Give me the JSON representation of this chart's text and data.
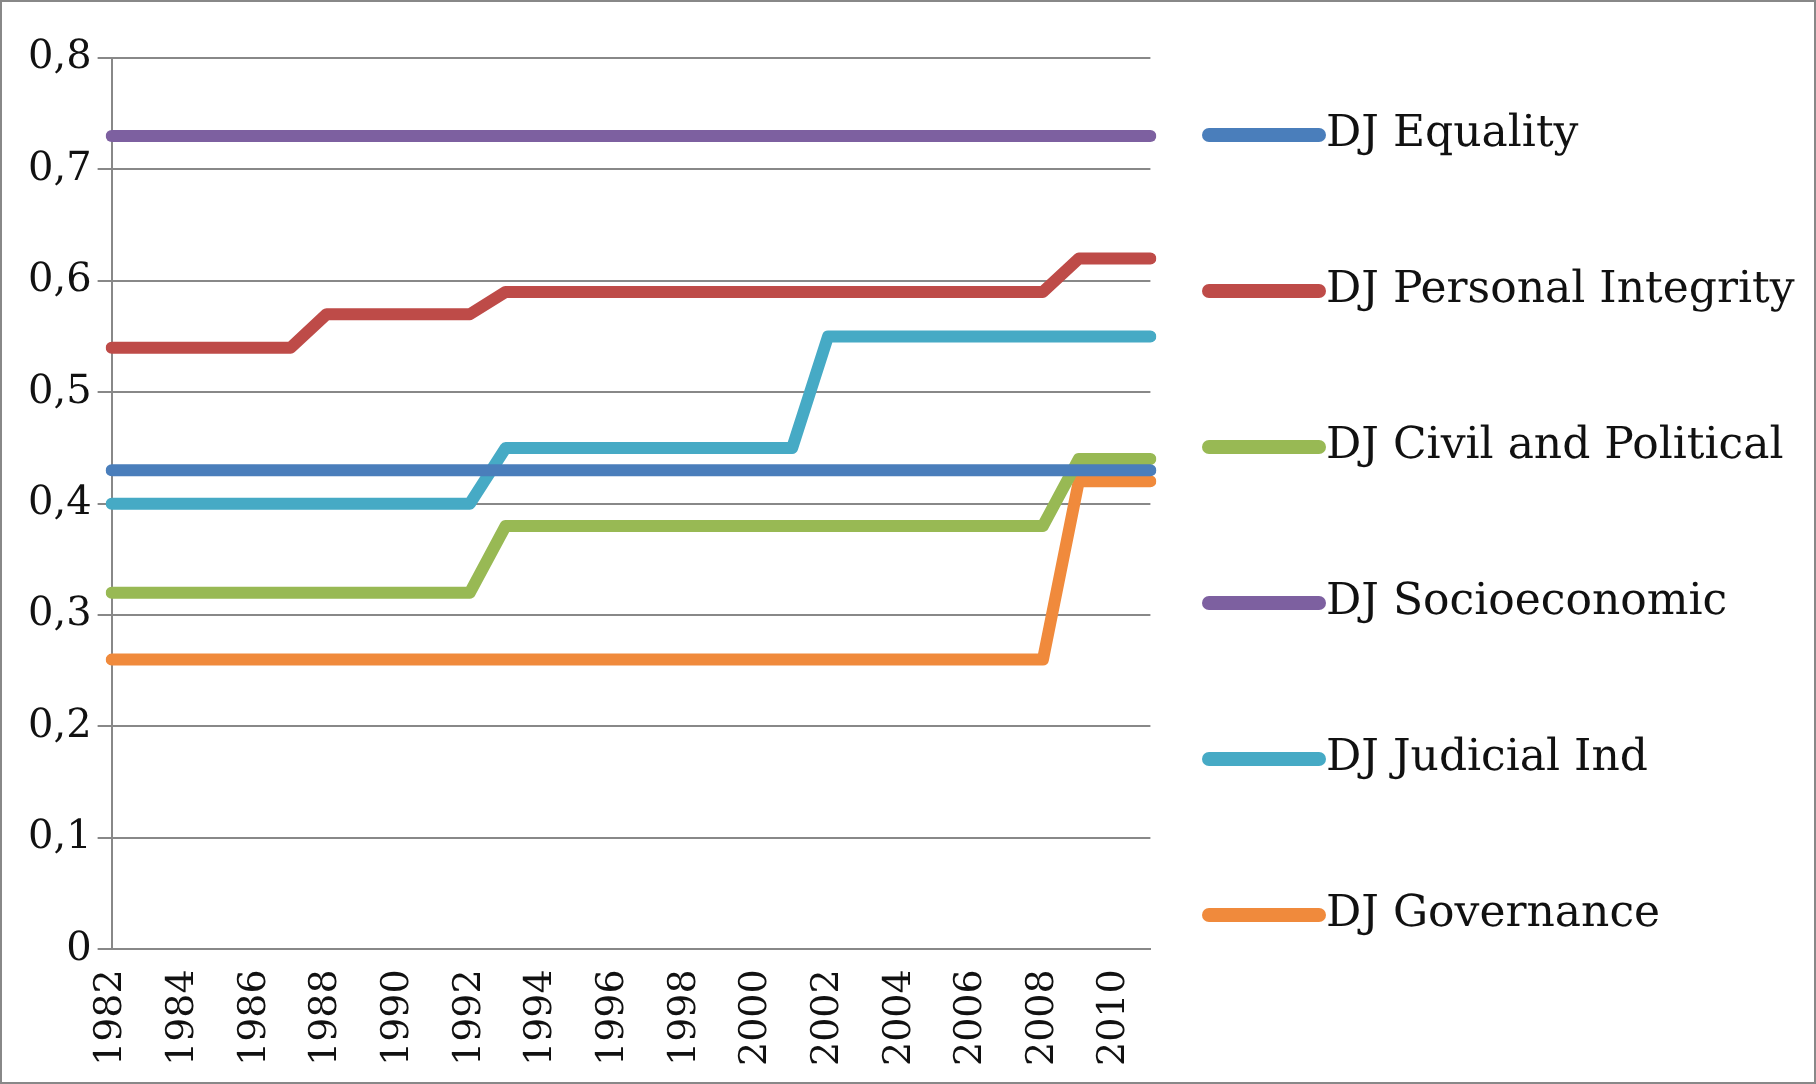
{
  "chart_data": {
    "type": "line",
    "categories": [
      "1982",
      null,
      "1984",
      null,
      "1986",
      null,
      "1988",
      null,
      "1990",
      null,
      "1992",
      null,
      "1994",
      null,
      "1996",
      null,
      "1998",
      null,
      "2000",
      null,
      "2002",
      null,
      "2004",
      null,
      "2006",
      null,
      "2008",
      null,
      "2010",
      null
    ],
    "series": [
      {
        "name": "DJ Equality",
        "color": "#4a7ebb",
        "values": [
          0.43,
          0.43,
          0.43,
          0.43,
          0.43,
          0.43,
          0.43,
          0.43,
          0.43,
          0.43,
          0.43,
          0.43,
          0.43,
          0.43,
          0.43,
          0.43,
          0.43,
          0.43,
          0.43,
          0.43,
          0.43,
          0.43,
          0.43,
          0.43,
          0.43,
          0.43,
          0.43,
          0.43,
          0.43,
          0.43
        ]
      },
      {
        "name": "DJ Personal Integrity",
        "color": "#be4b48",
        "values": [
          0.54,
          0.54,
          0.54,
          0.54,
          0.54,
          0.54,
          0.57,
          0.57,
          0.57,
          0.57,
          0.57,
          0.59,
          0.59,
          0.59,
          0.59,
          0.59,
          0.59,
          0.59,
          0.59,
          0.59,
          0.59,
          0.59,
          0.59,
          0.59,
          0.59,
          0.59,
          0.59,
          0.62,
          0.62,
          0.62
        ]
      },
      {
        "name": "DJ Civil and Political",
        "color": "#98b954",
        "values": [
          0.32,
          0.32,
          0.32,
          0.32,
          0.32,
          0.32,
          0.32,
          0.32,
          0.32,
          0.32,
          0.32,
          0.38,
          0.38,
          0.38,
          0.38,
          0.38,
          0.38,
          0.38,
          0.38,
          0.38,
          0.38,
          0.38,
          0.38,
          0.38,
          0.38,
          0.38,
          0.38,
          0.44,
          0.44,
          0.44
        ]
      },
      {
        "name": "DJ Socioeconomic",
        "color": "#7d60a0",
        "values": [
          0.73,
          0.73,
          0.73,
          0.73,
          0.73,
          0.73,
          0.73,
          0.73,
          0.73,
          0.73,
          0.73,
          0.73,
          0.73,
          0.73,
          0.73,
          0.73,
          0.73,
          0.73,
          0.73,
          0.73,
          0.73,
          0.73,
          0.73,
          0.73,
          0.73,
          0.73,
          0.73,
          0.73,
          0.73,
          0.73
        ]
      },
      {
        "name": "DJ Judicial Ind",
        "color": "#46aac5",
        "values": [
          0.4,
          0.4,
          0.4,
          0.4,
          0.4,
          0.4,
          0.4,
          0.4,
          0.4,
          0.4,
          0.4,
          0.45,
          0.45,
          0.45,
          0.45,
          0.45,
          0.45,
          0.45,
          0.45,
          0.45,
          0.55,
          0.55,
          0.55,
          0.55,
          0.55,
          0.55,
          0.55,
          0.55,
          0.55,
          0.55
        ]
      },
      {
        "name": "DJ Governance",
        "color": "#f08a3c",
        "values": [
          0.26,
          0.26,
          0.26,
          0.26,
          0.26,
          0.26,
          0.26,
          0.26,
          0.26,
          0.26,
          0.26,
          0.26,
          0.26,
          0.26,
          0.26,
          0.26,
          0.26,
          0.26,
          0.26,
          0.26,
          0.26,
          0.26,
          0.26,
          0.26,
          0.26,
          0.26,
          0.26,
          0.42,
          0.42,
          0.42
        ]
      }
    ],
    "ylim": [
      0,
      0.8
    ],
    "yticks": [
      0,
      {
        "value": 0.1,
        "label": "0,1"
      },
      {
        "value": 0.2,
        "label": "0,2"
      },
      {
        "value": 0.3,
        "label": "0,3"
      },
      {
        "value": 0.4,
        "label": "0,4"
      },
      {
        "value": 0.5,
        "label": "0,5"
      },
      {
        "value": 0.6,
        "label": "0,6"
      },
      {
        "value": 0.7,
        "label": "0,7"
      },
      {
        "value": 0.8,
        "label": "0,8"
      }
    ],
    "grid": "y",
    "legend": "right",
    "marker": "none",
    "line_style": "solid"
  }
}
